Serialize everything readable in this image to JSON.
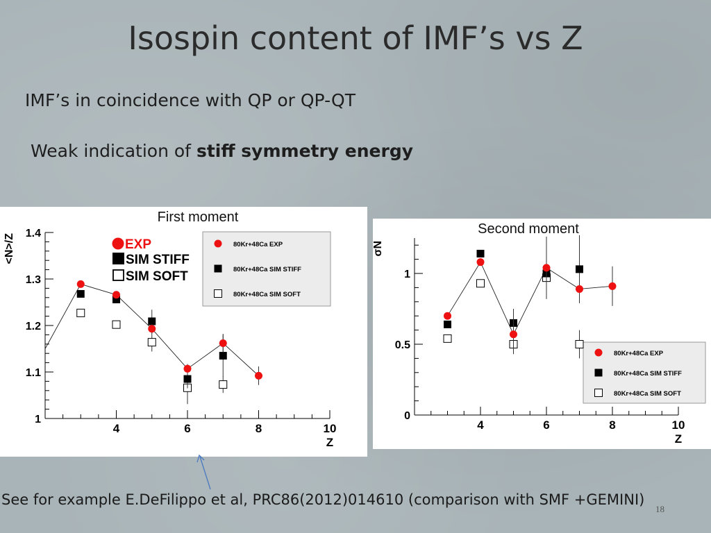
{
  "slide": {
    "title": "Isospin content of IMF’s vs Z",
    "line1": "IMF’s in coincidence with QP or QP-QT",
    "line2_prefix": "Weak indication of ",
    "line2_bold": "stiff symmetry energy",
    "footer": "See for example  E.DeFilippo et al, PRC86(2012)014610 (comparison with SMF +GEMINI)",
    "page_number": "18"
  },
  "colors": {
    "exp": "#ee1111",
    "stiff": "#000000",
    "soft": "#ffffff",
    "legend_fill": "#ececec"
  },
  "chart_data": [
    {
      "type": "scatter",
      "panel_title": "First moment",
      "ylabel": "<N>/Z",
      "xlabel": "Z",
      "xlim": [
        2,
        10
      ],
      "ylim": [
        1.0,
        1.4
      ],
      "xticks": [
        "4",
        "6",
        "8",
        "10"
      ],
      "yticks": [
        "1",
        "1.1",
        "1.2",
        "1.3",
        "1.4"
      ],
      "overlay_legend": [
        "EXP",
        "SIM STIFF",
        "SIM SOFT"
      ],
      "legend": [
        "80Kr+48Ca EXP",
        "80Kr+48Ca SIM STIFF",
        "80Kr+48Ca SIM SOFT"
      ],
      "series": [
        {
          "name": "80Kr+48Ca EXP",
          "marker": "circle",
          "line": true,
          "x": [
            3,
            4,
            5,
            6,
            7,
            8
          ],
          "y": [
            1.289,
            1.266,
            1.193,
            1.107,
            1.162,
            1.092
          ],
          "err": [
            0.004,
            0.005,
            0.01,
            0.01,
            0.02,
            0.02
          ]
        },
        {
          "name": "80Kr+48Ca SIM STIFF",
          "marker": "square",
          "x": [
            3,
            4,
            5,
            6,
            7
          ],
          "y": [
            1.268,
            1.256,
            1.209,
            1.085,
            1.135
          ],
          "err": [
            0.004,
            0.005,
            0.025,
            0.02,
            0.045
          ]
        },
        {
          "name": "80Kr+48Ca SIM SOFT",
          "marker": "square-open",
          "x": [
            3,
            4,
            5,
            6,
            7
          ],
          "y": [
            1.227,
            1.202,
            1.164,
            1.066,
            1.073
          ],
          "err": [
            0.004,
            0.004,
            0.02,
            0.035,
            0.018
          ]
        }
      ],
      "lead_in": [
        {
          "x": 2.0,
          "y": 1.15
        }
      ]
    },
    {
      "type": "scatter",
      "panel_title": "Second moment",
      "ylabel": "σN",
      "xlabel": "Z",
      "xlim": [
        2,
        10
      ],
      "ylim": [
        0,
        1.25
      ],
      "xticks": [
        "4",
        "6",
        "8",
        "10"
      ],
      "yticks": [
        "0",
        "0.5",
        "1"
      ],
      "legend": [
        "80Kr+48Ca EXP",
        "80Kr+48Ca SIM STIFF",
        "80Kr+48Ca SIM SOFT"
      ],
      "series": [
        {
          "name": "80Kr+48Ca EXP",
          "marker": "circle",
          "line": true,
          "x": [
            3,
            4,
            5,
            6,
            7,
            8
          ],
          "y": [
            0.7,
            1.08,
            0.57,
            1.04,
            0.89,
            0.91
          ],
          "err": [
            0.01,
            0.015,
            0.13,
            0.22,
            0.1,
            0.14
          ]
        },
        {
          "name": "80Kr+48Ca SIM STIFF",
          "marker": "square",
          "x": [
            3,
            4,
            5,
            6,
            7
          ],
          "y": [
            0.64,
            1.14,
            0.65,
            1.0,
            1.03
          ],
          "err": [
            0.01,
            0.02,
            0.1,
            0.12,
            0.24
          ]
        },
        {
          "name": "80Kr+48Ca SIM SOFT",
          "marker": "square-open",
          "x": [
            3,
            4,
            5,
            6,
            7
          ],
          "y": [
            0.54,
            0.93,
            0.5,
            0.97,
            0.5
          ],
          "err": [
            0.01,
            0.015,
            0.07,
            0.15,
            0.1
          ]
        }
      ]
    }
  ]
}
